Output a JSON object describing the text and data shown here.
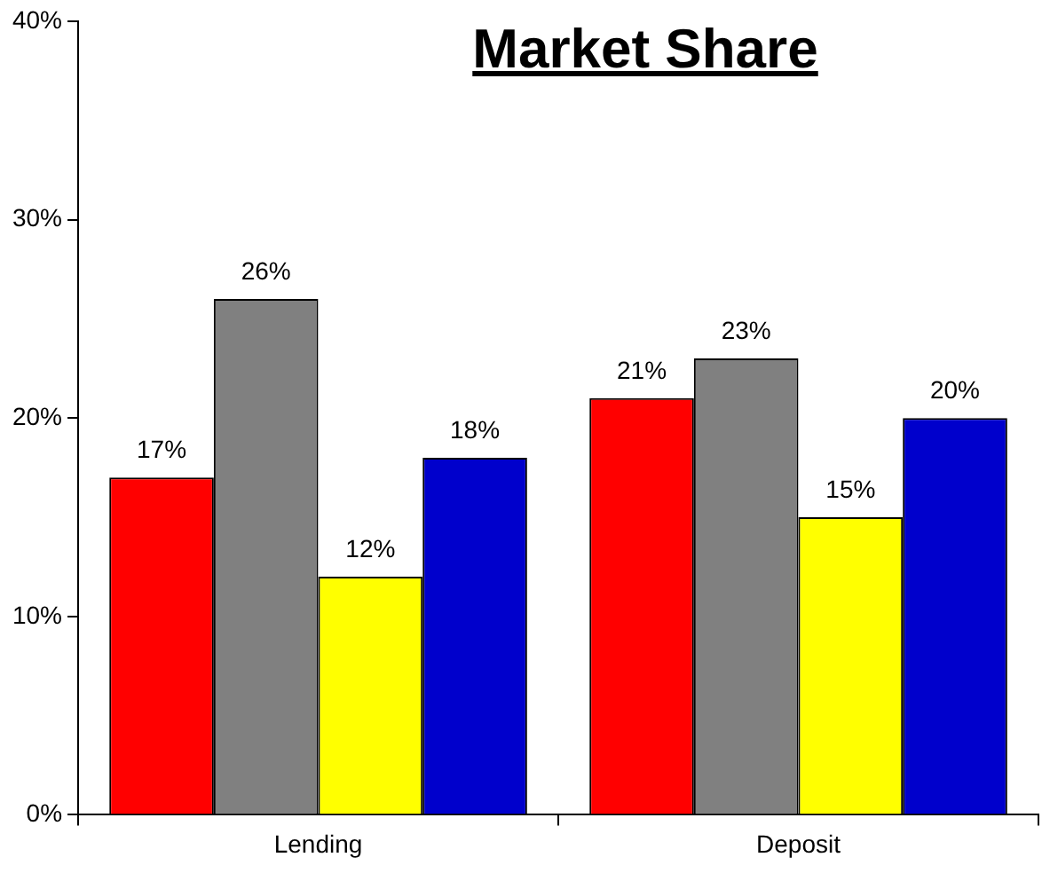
{
  "chart_data": {
    "type": "bar",
    "title": "Market Share",
    "categories": [
      "Lending",
      "Deposit"
    ],
    "series": [
      {
        "color": "#ff0000",
        "values": [
          17,
          21
        ],
        "value_labels": [
          "17%",
          "21%"
        ]
      },
      {
        "color": "#808080",
        "values": [
          26,
          23
        ],
        "value_labels": [
          "26%",
          "23%"
        ]
      },
      {
        "color": "#ffff00",
        "values": [
          12,
          15
        ],
        "value_labels": [
          "12%",
          "15%"
        ]
      },
      {
        "color": "#0000cc",
        "values": [
          18,
          20
        ],
        "value_labels": [
          "18%",
          "20%"
        ]
      }
    ],
    "ylim": [
      0,
      40
    ],
    "yticks": [
      {
        "value": 0,
        "label": "0%"
      },
      {
        "value": 10,
        "label": "10%"
      },
      {
        "value": 20,
        "label": "20%"
      },
      {
        "value": 30,
        "label": "30%"
      },
      {
        "value": 40,
        "label": "40%"
      }
    ],
    "grid": false,
    "legend": false
  }
}
